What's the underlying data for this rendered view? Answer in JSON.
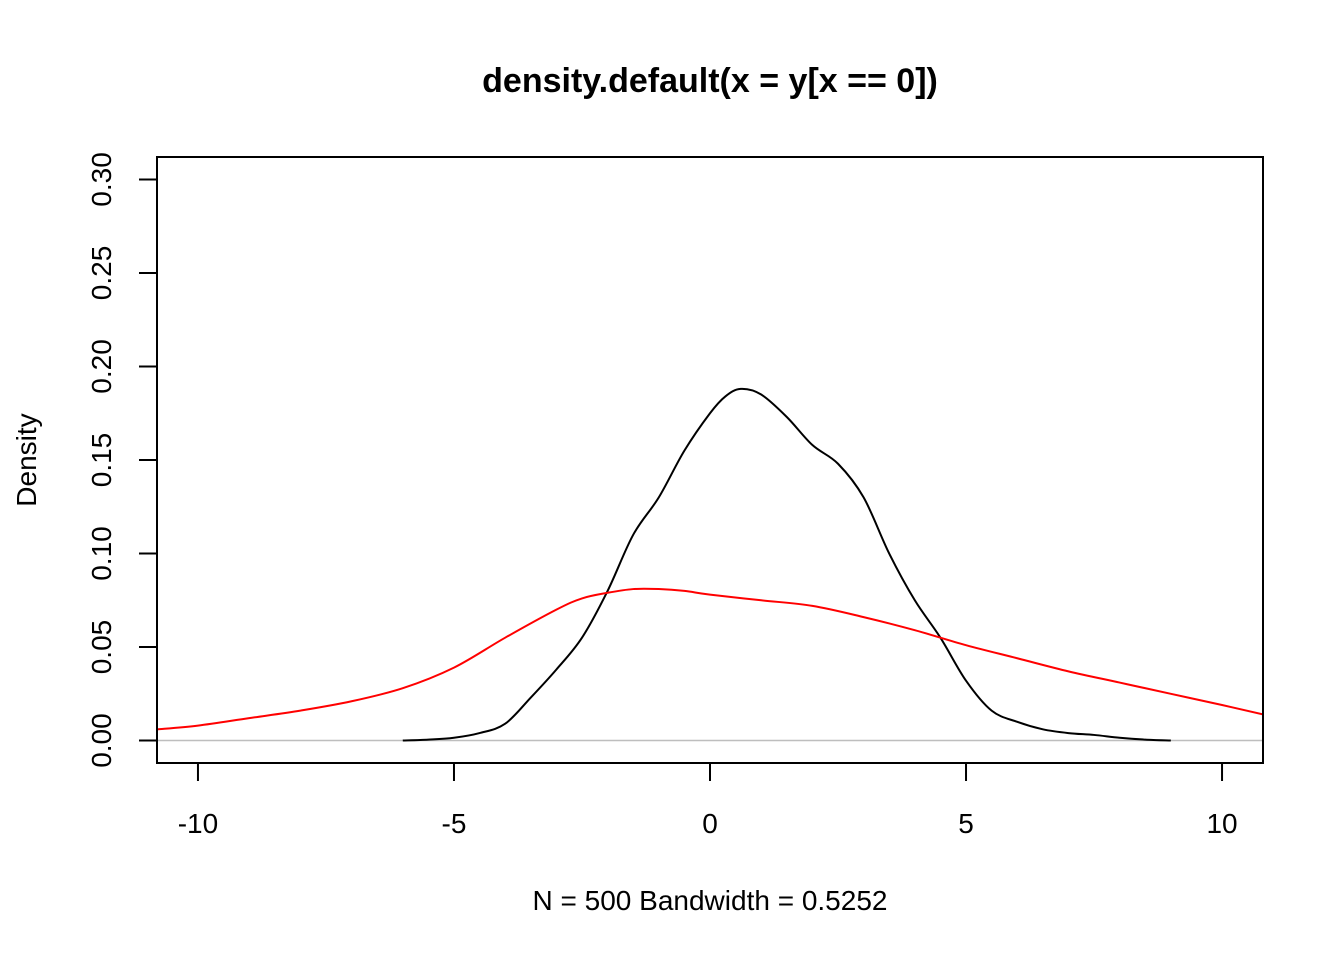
{
  "chart_data": {
    "type": "line",
    "title": "density.default(x = y[x == 0])",
    "xlabel": "N = 500   Bandwidth = 0.5252",
    "ylabel": "Density",
    "xlim": [
      -10.8,
      10.8
    ],
    "ylim": [
      -0.012,
      0.312
    ],
    "x_ticks": [
      -10,
      -5,
      0,
      5,
      10
    ],
    "x_tick_labels": [
      "-10",
      "-5",
      "0",
      "5",
      "10"
    ],
    "y_ticks": [
      0.0,
      0.05,
      0.1,
      0.15,
      0.2,
      0.25,
      0.3
    ],
    "y_tick_labels": [
      "0.00",
      "0.05",
      "0.10",
      "0.15",
      "0.20",
      "0.25",
      "0.30"
    ],
    "grid": false,
    "zero_line_color": "#BEBEBE",
    "series": [
      {
        "color": "#000000",
        "x": [
          -6.0,
          -5.5,
          -5.0,
          -4.5,
          -4.0,
          -3.5,
          -3.0,
          -2.5,
          -2.0,
          -1.5,
          -1.0,
          -0.5,
          0.0,
          0.3,
          0.6,
          1.0,
          1.5,
          2.0,
          2.5,
          3.0,
          3.5,
          4.0,
          4.5,
          5.0,
          5.5,
          6.0,
          6.5,
          7.0,
          7.5,
          8.0,
          8.5,
          9.0
        ],
        "y": [
          0.0,
          0.0005,
          0.0015,
          0.004,
          0.009,
          0.023,
          0.038,
          0.055,
          0.08,
          0.11,
          0.13,
          0.155,
          0.175,
          0.184,
          0.188,
          0.185,
          0.173,
          0.158,
          0.148,
          0.13,
          0.1,
          0.075,
          0.055,
          0.032,
          0.016,
          0.01,
          0.006,
          0.004,
          0.003,
          0.0015,
          0.0005,
          0.0
        ]
      },
      {
        "color": "#FF0000",
        "x": [
          -10.8,
          -10.0,
          -9.0,
          -8.0,
          -7.0,
          -6.0,
          -5.0,
          -4.0,
          -3.0,
          -2.5,
          -2.0,
          -1.5,
          -1.0,
          -0.5,
          0.0,
          1.0,
          2.0,
          3.0,
          4.0,
          5.0,
          6.0,
          7.0,
          8.0,
          9.0,
          10.0,
          10.8
        ],
        "y": [
          0.006,
          0.008,
          0.012,
          0.016,
          0.021,
          0.028,
          0.039,
          0.055,
          0.07,
          0.076,
          0.079,
          0.081,
          0.081,
          0.08,
          0.078,
          0.075,
          0.072,
          0.066,
          0.059,
          0.051,
          0.044,
          0.037,
          0.031,
          0.025,
          0.019,
          0.014
        ]
      }
    ]
  }
}
